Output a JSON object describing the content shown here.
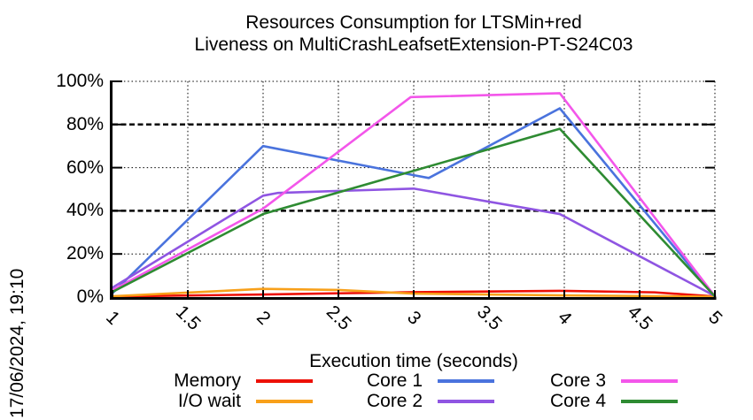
{
  "title": {
    "line1": "Resources Consumption for LTSMin+red",
    "line2": "Liveness on MultiCrashLeafsetExtension-PT-S24C03"
  },
  "timestamp": "17/06/2024, 19:10",
  "chart_data": {
    "type": "line",
    "xlabel": "Execution time (seconds)",
    "xlim": [
      1,
      5
    ],
    "ylim": [
      0,
      100
    ],
    "grid": true,
    "legend_position": "bottom",
    "xticks": [
      {
        "v": 1,
        "label": "1"
      },
      {
        "v": 1.5,
        "label": "1.5"
      },
      {
        "v": 2,
        "label": "2"
      },
      {
        "v": 2.5,
        "label": "2.5"
      },
      {
        "v": 3,
        "label": "3"
      },
      {
        "v": 3.5,
        "label": "3.5"
      },
      {
        "v": 4,
        "label": "4"
      },
      {
        "v": 4.5,
        "label": "4.5"
      },
      {
        "v": 5,
        "label": "5"
      }
    ],
    "yticks": [
      {
        "v": 0,
        "label": "0%"
      },
      {
        "v": 20,
        "label": "20%"
      },
      {
        "v": 40,
        "label": "40%"
      },
      {
        "v": 60,
        "label": "60%"
      },
      {
        "v": 80,
        "label": "80%"
      },
      {
        "v": 100,
        "label": "100%"
      }
    ],
    "series": [
      {
        "name": "Memory",
        "color": "#ed1006",
        "points": [
          [
            1,
            0.3
          ],
          [
            2,
            1.2
          ],
          [
            3,
            2.3
          ],
          [
            3.97,
            2.9
          ],
          [
            4.6,
            2.2
          ],
          [
            5,
            0.3
          ]
        ]
      },
      {
        "name": "I/O wait",
        "color": "#f8a01a",
        "points": [
          [
            1,
            0.4
          ],
          [
            2,
            3.8
          ],
          [
            2.5,
            3.3
          ],
          [
            3,
            1.6
          ],
          [
            4,
            0.8
          ],
          [
            5,
            0.2
          ]
        ]
      },
      {
        "name": "Core 1",
        "color": "#4a73dd",
        "points": [
          [
            1,
            1.8
          ],
          [
            2,
            70
          ],
          [
            3,
            56.5
          ],
          [
            3.1,
            55.2
          ],
          [
            3.97,
            87.5
          ],
          [
            5,
            0.3
          ]
        ]
      },
      {
        "name": "Core 2",
        "color": "#8f55e2",
        "points": [
          [
            1,
            4.4
          ],
          [
            2,
            47
          ],
          [
            2.1,
            48.3
          ],
          [
            3,
            50.3
          ],
          [
            3.97,
            38.5
          ],
          [
            5,
            0.5
          ]
        ]
      },
      {
        "name": "Core 3",
        "color": "#f356ea",
        "points": [
          [
            1,
            3.2
          ],
          [
            2,
            41
          ],
          [
            2.98,
            92.7
          ],
          [
            3.97,
            94.5
          ],
          [
            5,
            0.4
          ]
        ]
      },
      {
        "name": "Core 4",
        "color": "#2e8b32",
        "points": [
          [
            1,
            2.4
          ],
          [
            2,
            38.5
          ],
          [
            3.97,
            78
          ],
          [
            5,
            0.3
          ]
        ]
      }
    ],
    "legend_columns": [
      [
        "Memory",
        "I/O wait"
      ],
      [
        "Core 1",
        "Core 2"
      ],
      [
        "Core 3",
        "Core 4"
      ]
    ]
  }
}
